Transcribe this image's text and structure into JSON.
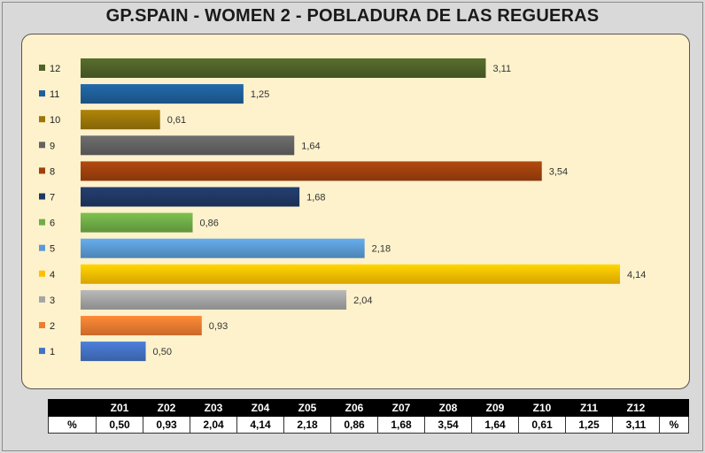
{
  "title": "GP.SPAIN - WOMEN 2  - POBLADURA DE LAS REGUERAS",
  "chart_data": {
    "type": "bar",
    "orientation": "horizontal",
    "categories": [
      "12",
      "11",
      "10",
      "9",
      "8",
      "7",
      "6",
      "5",
      "4",
      "3",
      "2",
      "1"
    ],
    "values": [
      3.11,
      1.25,
      0.61,
      1.64,
      3.54,
      1.68,
      0.86,
      2.18,
      4.14,
      2.04,
      0.93,
      0.5
    ],
    "value_labels": [
      "3,11",
      "1,25",
      "0,61",
      "1,64",
      "3,54",
      "1,68",
      "0,86",
      "2,18",
      "4,14",
      "2,04",
      "0,93",
      "0,50"
    ],
    "colors": [
      "#4f6228",
      "#1f5f9a",
      "#9c7708",
      "#636363",
      "#a0410d",
      "#203864",
      "#70ad47",
      "#5b9bd5",
      "#ffc000",
      "#a5a5a5",
      "#ed7d31",
      "#4472c4"
    ],
    "xlim": [
      0,
      4.14
    ],
    "legend": "left",
    "grid": false,
    "title": "GP.SPAIN - WOMEN 2  - POBLADURA DE LAS REGUERAS",
    "xlabel": "",
    "ylabel": ""
  },
  "table": {
    "header": [
      "",
      "Z01",
      "Z02",
      "Z03",
      "Z04",
      "Z05",
      "Z06",
      "Z07",
      "Z08",
      "Z09",
      "Z10",
      "Z11",
      "Z12",
      ""
    ],
    "row": [
      "%",
      "0,50",
      "0,93",
      "2,04",
      "4,14",
      "2,18",
      "0,86",
      "1,68",
      "3,54",
      "1,64",
      "0,61",
      "1,25",
      "3,11",
      "%"
    ]
  }
}
